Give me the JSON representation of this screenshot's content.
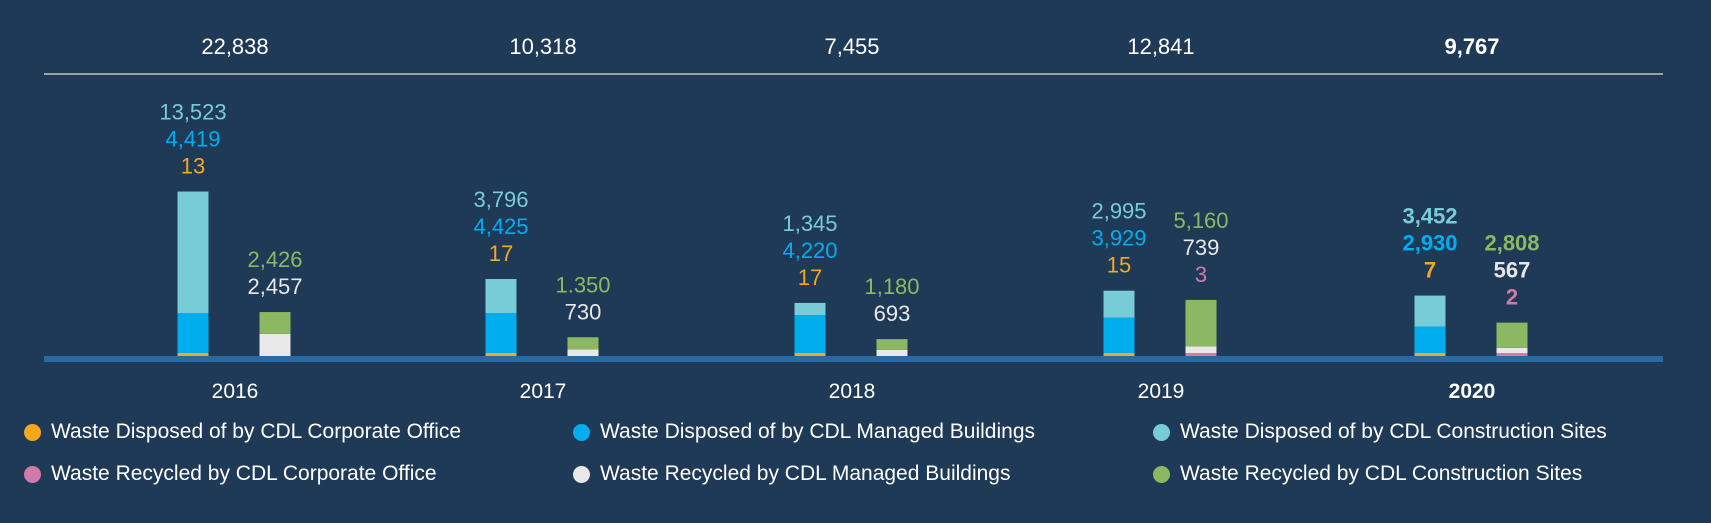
{
  "chart_data": {
    "type": "bar",
    "stacked": true,
    "categories": [
      "2016",
      "2017",
      "2018",
      "2019",
      "2020"
    ],
    "highlight_category": "2020",
    "totals": [
      "22,838",
      "10,318",
      "7,455",
      "12,841",
      "9,767"
    ],
    "groups": [
      {
        "name": "Waste Disposed",
        "series": [
          {
            "name": "Waste Disposed of by CDL Corporate Office",
            "color": "#f5a81c",
            "values": [
              13,
              17,
              17,
              15,
              7
            ],
            "labels": [
              "13",
              "17",
              "17",
              "15",
              "7"
            ]
          },
          {
            "name": "Waste Disposed of by CDL Managed Buildings",
            "color": "#00aeef",
            "values": [
              4419,
              4425,
              4220,
              3929,
              2930
            ],
            "labels": [
              "4,419",
              "4,425",
              "4,220",
              "3,929",
              "2,930"
            ]
          },
          {
            "name": "Waste Disposed of by CDL Construction Sites",
            "color": "#77ccd8",
            "values": [
              13523,
              3796,
              1345,
              2995,
              3452
            ],
            "labels": [
              "13,523",
              "3,796",
              "1,345",
              "2,995",
              "3,452"
            ]
          }
        ]
      },
      {
        "name": "Waste Recycled",
        "series": [
          {
            "name": "Waste Recycled by CDL Corporate Office",
            "color": "#d07aa8",
            "values": [
              0,
              0,
              0,
              3,
              2
            ],
            "labels": [
              null,
              null,
              null,
              "3",
              "2"
            ]
          },
          {
            "name": "Waste Recycled by CDL Managed Buildings",
            "color": "#e8e8e8",
            "values": [
              2457,
              730,
              693,
              739,
              567
            ],
            "labels": [
              "2,457",
              "730",
              "693",
              "739",
              "567"
            ]
          },
          {
            "name": "Waste Recycled by CDL Construction Sites",
            "color": "#8db863",
            "values": [
              2426,
              1350,
              1180,
              5160,
              2808
            ],
            "labels": [
              "2,426",
              "1.350",
              "1,180",
              "5,160",
              "2,808"
            ]
          }
        ]
      }
    ],
    "legend": {
      "placement": "bottom",
      "items": [
        {
          "label": "Waste Disposed of by CDL Corporate Office",
          "color": "#f5a81c"
        },
        {
          "label": "Waste Disposed of by CDL Managed Buildings",
          "color": "#00aeef"
        },
        {
          "label": "Waste Disposed of by CDL Construction Sites",
          "color": "#77ccd8"
        },
        {
          "label": "Waste Recycled by CDL Corporate Office",
          "color": "#d07aa8"
        },
        {
          "label": "Waste Recycled by CDL Managed Buildings",
          "color": "#e8e8e8"
        },
        {
          "label": "Waste Recycled by CDL Construction Sites",
          "color": "#8db863"
        }
      ]
    },
    "grid": false,
    "ylim": [
      0,
      20000
    ]
  }
}
